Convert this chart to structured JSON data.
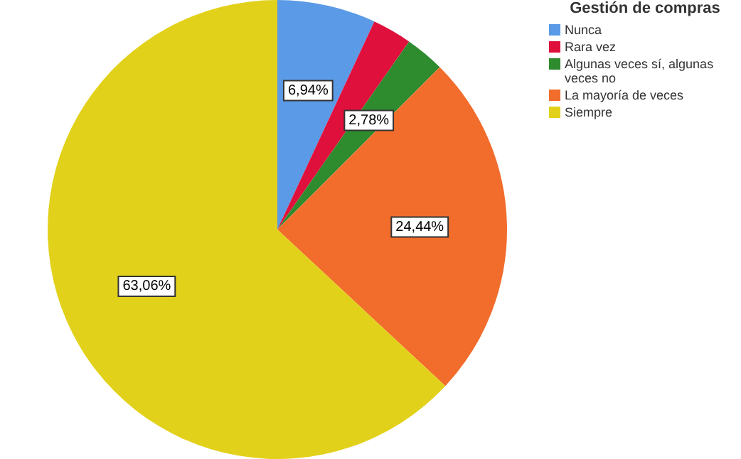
{
  "chart_data": {
    "type": "pie",
    "legend_title": "Gestión de compras",
    "legend": "top right",
    "categories": [
      "Nunca",
      "Rara vez",
      "Algunas veces sí, algunas veces no",
      "La mayoría de veces",
      "Siempre"
    ],
    "values": [
      6.94,
      2.78,
      2.78,
      24.44,
      63.06
    ],
    "colors": [
      "#5a9ae6",
      "#e0103c",
      "#2e8b2e",
      "#f26c2c",
      "#e2d11a"
    ],
    "value_labels": [
      "6,94%",
      null,
      "2,78%",
      "24,44%",
      "63,06%"
    ]
  }
}
